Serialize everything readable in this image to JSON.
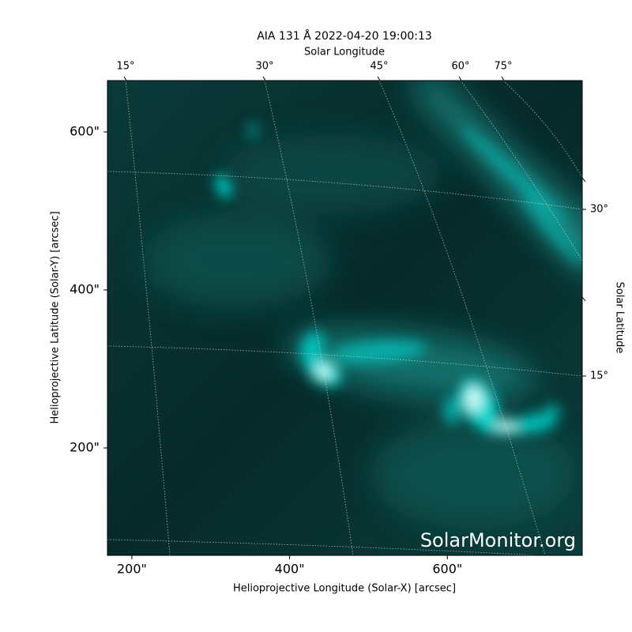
{
  "chart_data": {
    "type": "image",
    "title": "AIA 131 Å 2022-04-20 19:00:13",
    "x_label": "Helioprojective Longitude (Solar-X) [arcsec]",
    "y_label": "Helioprojective Latitude (Solar-Y) [arcsec]",
    "top_label": "Solar Longitude",
    "right_label": "Solar Latitude",
    "watermark": "SolarMonitor.org",
    "xlim": [
      169,
      771
    ],
    "ylim": [
      64,
      665
    ],
    "xticks": [
      {
        "value": 200,
        "label": "200\""
      },
      {
        "value": 400,
        "label": "400\""
      },
      {
        "value": 600,
        "label": "600\""
      }
    ],
    "yticks": [
      {
        "value": 200,
        "label": "200\""
      },
      {
        "value": 400,
        "label": "400\""
      },
      {
        "value": 600,
        "label": "600\""
      }
    ],
    "top_ticks": [
      {
        "value": 15,
        "label": "15°"
      },
      {
        "value": 30,
        "label": "30°"
      },
      {
        "value": 45,
        "label": "45°"
      },
      {
        "value": 60,
        "label": "60°"
      },
      {
        "value": 75,
        "label": "75°"
      }
    ],
    "right_ticks": [
      {
        "value": 30,
        "label": "30°"
      },
      {
        "value": 15,
        "label": "15°"
      }
    ],
    "color": "#00d8d0"
  }
}
